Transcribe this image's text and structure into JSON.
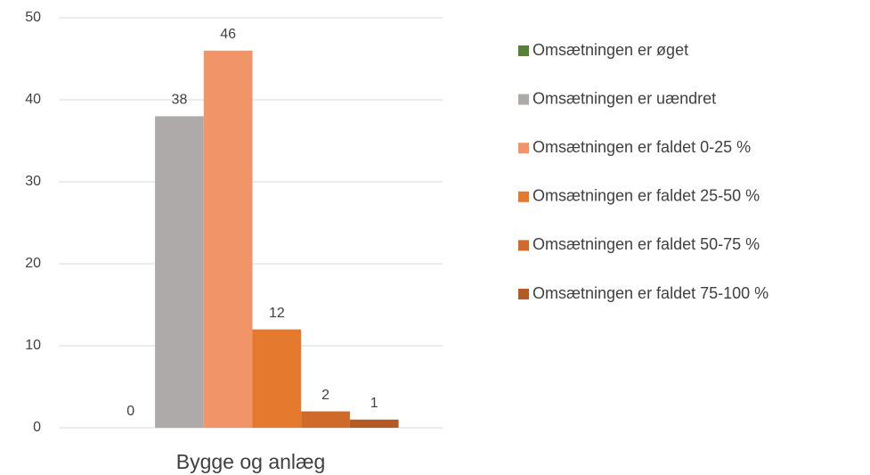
{
  "chart_data": {
    "type": "bar",
    "categories": [
      "Bygge og anlæg"
    ],
    "series": [
      {
        "name": "Omsætningen er øget",
        "color": "#548235",
        "values": [
          0
        ]
      },
      {
        "name": "Omsætningen er uændret",
        "color": "#aeaaaa",
        "values": [
          38
        ]
      },
      {
        "name": "Omsætningen er faldet 0-25 %",
        "color": "#f19467",
        "values": [
          46
        ]
      },
      {
        "name": "Omsætningen er faldet 25-50 %",
        "color": "#e57a2e",
        "values": [
          12
        ]
      },
      {
        "name": "Omsætningen er faldet 50-75 %",
        "color": "#cf6a2b",
        "values": [
          2
        ]
      },
      {
        "name": "Omsætningen er faldet 75-100 %",
        "color": "#b45a25",
        "values": [
          1
        ]
      }
    ],
    "ylim": [
      0,
      50
    ],
    "yticks": [
      0,
      10,
      20,
      30,
      40,
      50
    ],
    "grid": true,
    "legend": "right"
  }
}
